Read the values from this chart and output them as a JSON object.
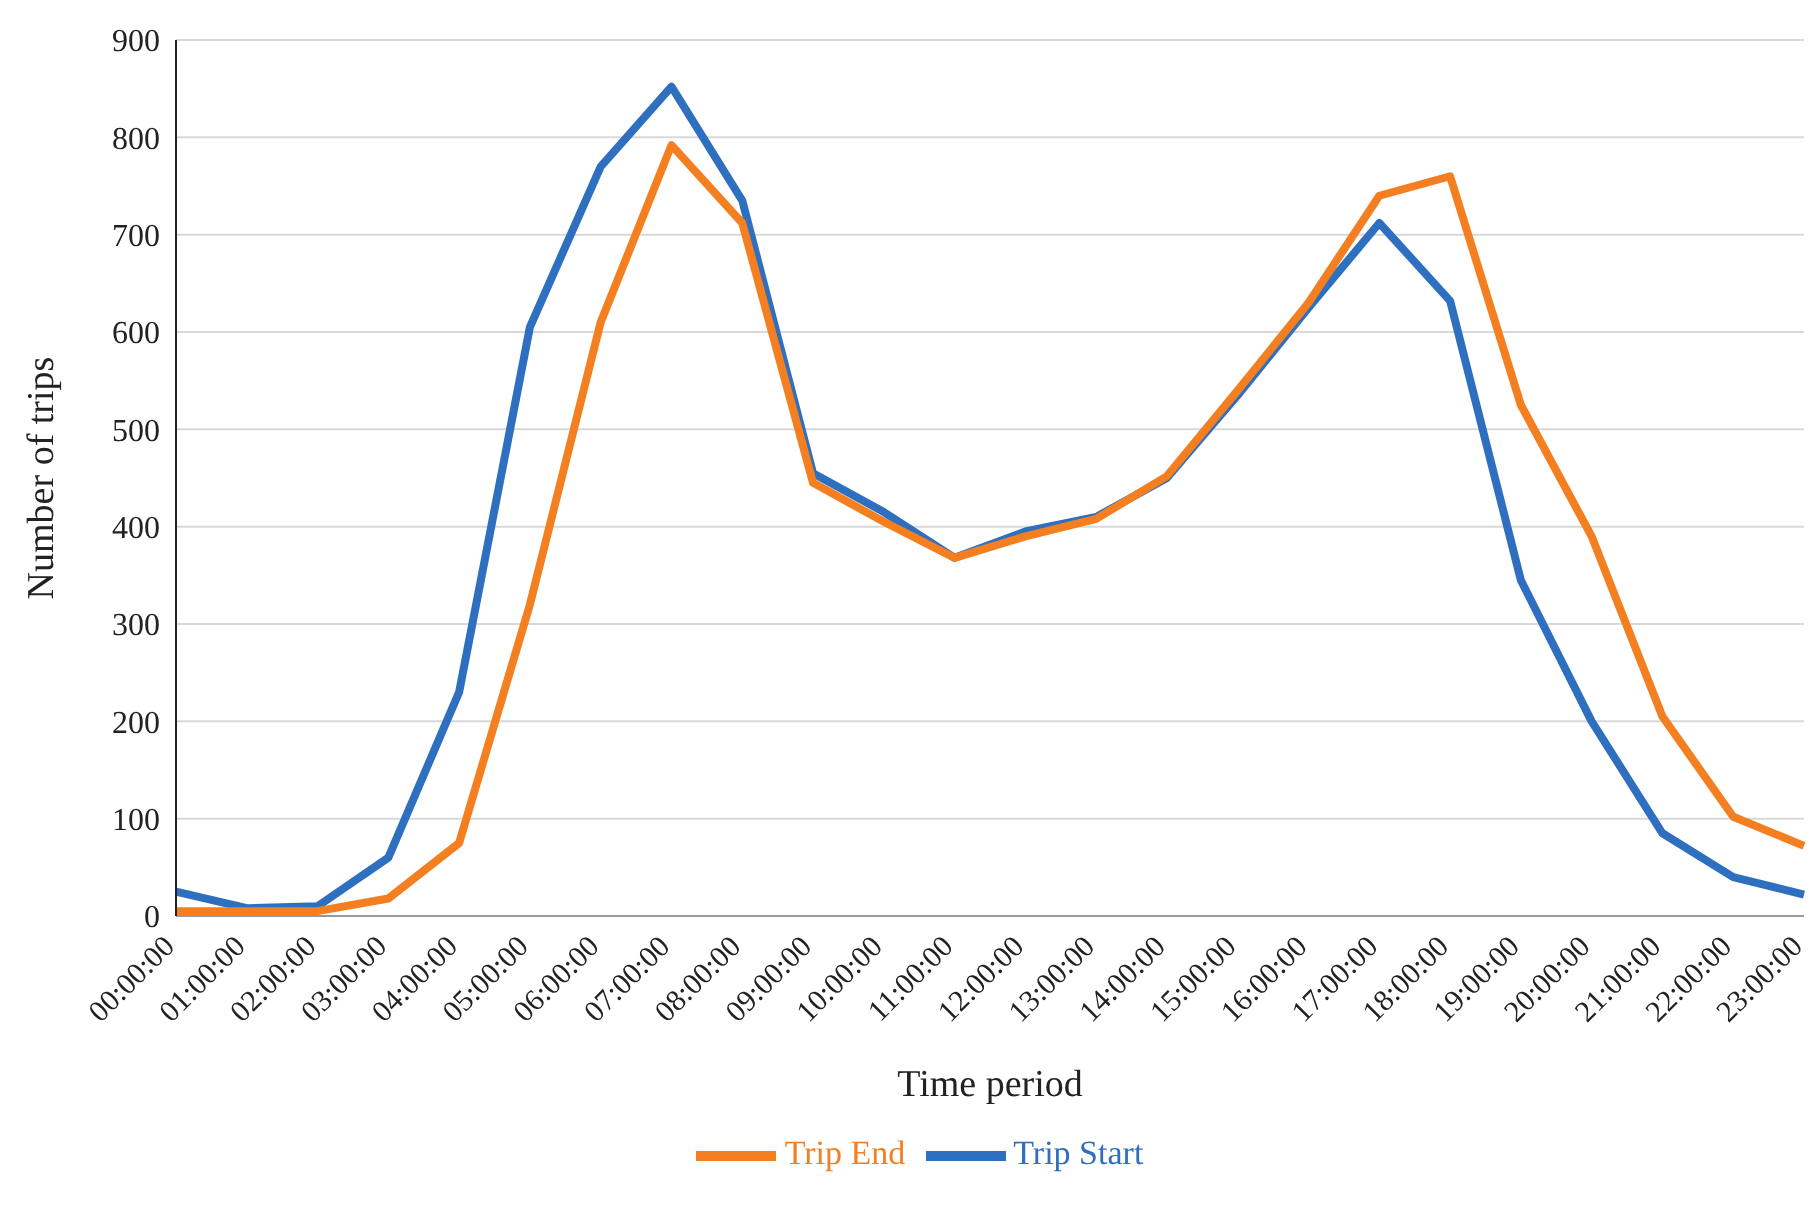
{
  "chart_data": {
    "type": "line",
    "xlabel": "Time period",
    "ylabel": "Number of trips",
    "categories": [
      "00:00:00",
      "01:00:00",
      "02:00:00",
      "03:00:00",
      "04:00:00",
      "05:00:00",
      "06:00:00",
      "07:00:00",
      "08:00:00",
      "09:00:00",
      "10:00:00",
      "11:00:00",
      "12:00:00",
      "13:00:00",
      "14:00:00",
      "15:00:00",
      "16:00:00",
      "17:00:00",
      "18:00:00",
      "19:00:00",
      "20:00:00",
      "21:00:00",
      "22:00:00",
      "23:00:00"
    ],
    "series": [
      {
        "name": "Trip Start",
        "color": "#2e6fc0",
        "values": [
          25,
          8,
          10,
          60,
          230,
          605,
          770,
          852,
          735,
          455,
          415,
          368,
          395,
          410,
          450,
          535,
          625,
          712,
          632,
          345,
          200,
          85,
          40,
          22
        ]
      },
      {
        "name": "Trip End",
        "color": "#f47f20",
        "values": [
          5,
          5,
          5,
          18,
          75,
          320,
          610,
          792,
          712,
          445,
          405,
          368,
          390,
          408,
          452,
          540,
          630,
          740,
          760,
          525,
          390,
          205,
          102,
          72
        ]
      }
    ],
    "ylim": [
      0,
      900
    ],
    "yticks": [
      0,
      100,
      200,
      300,
      400,
      500,
      600,
      700,
      800,
      900
    ],
    "grid": "y",
    "legend": "bottom",
    "marker": "none",
    "line_style": "solid"
  }
}
